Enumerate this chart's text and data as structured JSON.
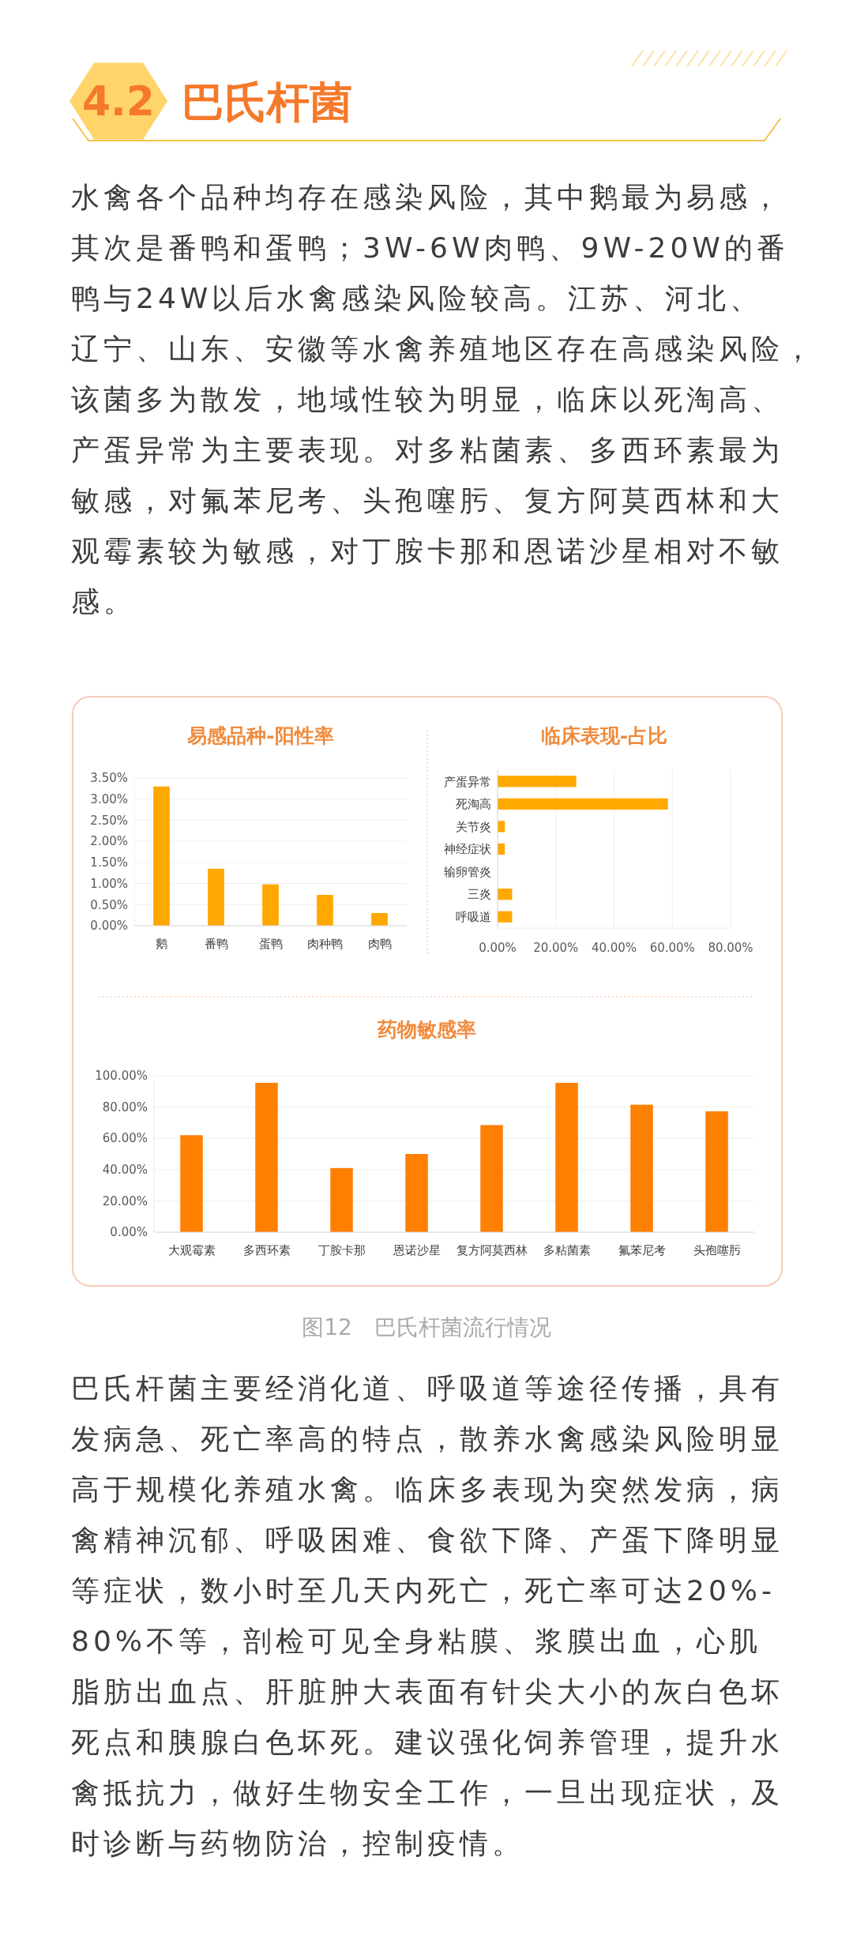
{
  "chart_data": [
    {
      "type": "bar",
      "title": "易感品种-阳性率",
      "categories": [
        "鹅",
        "番鸭",
        "蛋鸭",
        "肉种鸭",
        "肉鸭"
      ],
      "values": [
        3.3,
        1.35,
        0.98,
        0.73,
        0.3
      ],
      "color": "#ffa800",
      "ylim": [
        0,
        3.5
      ],
      "yticks": [
        {
          "value": 0,
          "label": "0.00%"
        },
        {
          "value": 0.5,
          "label": "0.50%"
        },
        {
          "value": 1,
          "label": "1.00%"
        },
        {
          "value": 1.5,
          "label": "1.50%"
        },
        {
          "value": 2,
          "label": "2.00%"
        },
        {
          "value": 2.5,
          "label": "2.50%"
        },
        {
          "value": 3,
          "label": "3.00%"
        },
        {
          "value": 3.5,
          "label": "3.50%"
        }
      ],
      "grid": "y",
      "annotations": [
        "4.2",
        "巴氏杆菌",
        "水禽各个品种均存在感染风险，其中鹅最为易感，其次是番鸭和蛋鸭；3W-6W肉鸭、9W-20W的番鸭与24W以后水禽感染风险较高。江苏、河北、辽宁、山东、安徽等水禽养殖地区存在高感染风险，该菌多为散发，地域性较为明显，临床以死淘高、产蛋异常为主要表现。对多粘菌素、多西环素最为敏感，对氟苯尼考、头孢噻肟、复方阿莫西林和大观霉素较为敏感，对丁胺卡那和恩诺沙星相对不敏感。"
      ]
    },
    {
      "type": "bar",
      "orientation": "horizontal",
      "title": "临床表现-占比",
      "categories": [
        "产蛋异常",
        "死淘高",
        "关节炎",
        "神经症状",
        "输卵管炎",
        "三炎",
        "呼吸道"
      ],
      "values": [
        27,
        58.5,
        2.5,
        2.5,
        0,
        5,
        5
      ],
      "color": "#ffa800",
      "xlim": [
        0,
        80
      ],
      "xticks": [
        {
          "value": 0,
          "label": "0.00%"
        },
        {
          "value": 20,
          "label": "20.00%"
        },
        {
          "value": 40,
          "label": "40.00%"
        },
        {
          "value": 60,
          "label": "60.00%"
        },
        {
          "value": 80,
          "label": "80.00%"
        }
      ],
      "grid": "x"
    },
    {
      "type": "bar",
      "title": "药物敏感率",
      "categories": [
        "大观霉素",
        "多西环素",
        "丁胺卡那",
        "恩诺沙星",
        "复方阿莫西林",
        "多粘菌素",
        "氟苯尼考",
        "头孢噻肟"
      ],
      "values": [
        62,
        95.5,
        41,
        50,
        68.5,
        95.5,
        81.5,
        77.3
      ],
      "color": "#ff7f00",
      "ylim": [
        0,
        100
      ],
      "yticks": [
        {
          "value": 0,
          "label": "0.00%"
        },
        {
          "value": 20,
          "label": "20.00%"
        },
        {
          "value": 40,
          "label": "40.00%"
        },
        {
          "value": 60,
          "label": "60.00%"
        },
        {
          "value": 80,
          "label": "80.00%"
        },
        {
          "value": 100,
          "label": "100.00%"
        }
      ],
      "grid": "y",
      "annotations": [
        "图12　巴氏杆菌流行情况",
        "巴氏杆菌主要经消化道、呼吸道等途径传播，具有发病急、死亡率高的特点，散养水禽感染风险明显高于规模化养殖水禽。临床多表现为突然发病，病禽精神沉郁、呼吸困难、食欲下降、产蛋下降明显等症状，数小时至几天内死亡，死亡率可达20%-80%不等，剖检可见全身粘膜、浆膜出血，心肌脂肪出血点、肝脏肿大表面有针尖大小的灰白色坏死点和胰腺白色坏死。建议强化饲养管理，提升水禽抵抗力，做好生物安全工作，一旦出现症状，及时诊断与药物防治，控制疫情。"
      ]
    }
  ]
}
